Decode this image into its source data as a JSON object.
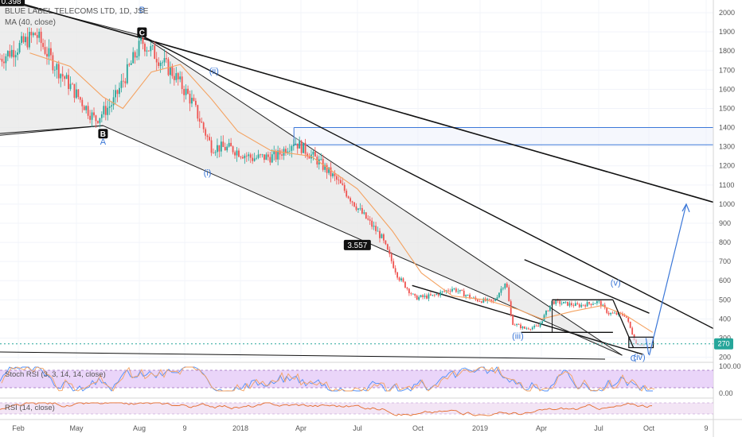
{
  "header": {
    "title": "BLUE LABEL TELECOMS LTD, 1D, JSE",
    "ma_label": "MA (40, close)"
  },
  "indicators": {
    "stoch_label": "Stoch RSI (3, 3, 14, 14, close)",
    "rsi_label": "RSI (14, close)",
    "stoch_ticks": [
      "100.00",
      "0.00"
    ]
  },
  "colors": {
    "up": "#26a69a",
    "down": "#ef5350",
    "ma": "#f4a261",
    "box": "#3c78d8",
    "wave_label": "#3c78d8",
    "stoch_fill": "#e3c7f7",
    "rsi_fill": "#f3e5f5",
    "current_price_bg": "#26a69a",
    "stoch_k": "#4f8ef7",
    "stoch_d": "#f4a261",
    "rsi_line": "#e46b2a"
  },
  "chart_data": {
    "type": "candlestick",
    "y_axis": {
      "ticks": [
        2000,
        1900,
        1800,
        1700,
        1600,
        1500,
        1400,
        1300,
        1200,
        1100,
        1000,
        900,
        800,
        700,
        600,
        500,
        400,
        300,
        200
      ],
      "range": [
        190,
        2050
      ],
      "scale": "linear"
    },
    "x_axis": {
      "ticks": [
        "Feb",
        "May",
        "Aug",
        "9",
        "2018",
        "Apr",
        "Jul",
        "Oct",
        "2019",
        "Apr",
        "Jul",
        "Oct",
        "9"
      ],
      "range": [
        "2017-01-15",
        "2019-12-31"
      ]
    },
    "current_price": 270,
    "price_path": [
      [
        "2017-01-15",
        1760
      ],
      [
        "2017-02-15",
        1830
      ],
      [
        "2017-03-10",
        1890
      ],
      [
        "2017-04-05",
        1740
      ],
      [
        "2017-05-05",
        1600
      ],
      [
        "2017-06-08",
        1440
      ],
      [
        "2017-07-05",
        1530
      ],
      [
        "2017-08-01",
        1730
      ],
      [
        "2017-08-18",
        1850
      ],
      [
        "2017-09-10",
        1770
      ],
      [
        "2017-10-05",
        1680
      ],
      [
        "2017-11-01",
        1540
      ],
      [
        "2017-12-01",
        1300
      ],
      [
        "2018-01-01",
        1290
      ],
      [
        "2018-02-01",
        1240
      ],
      [
        "2018-03-10",
        1250
      ],
      [
        "2018-04-05",
        1330
      ],
      [
        "2018-05-10",
        1230
      ],
      [
        "2018-06-10",
        1120
      ],
      [
        "2018-07-15",
        960
      ],
      [
        "2018-08-15",
        830
      ],
      [
        "2018-09-10",
        620
      ],
      [
        "2018-10-05",
        510
      ],
      [
        "2018-11-01",
        520
      ],
      [
        "2018-12-01",
        560
      ],
      [
        "2019-01-05",
        500
      ],
      [
        "2019-02-01",
        490
      ],
      [
        "2019-02-20",
        600
      ],
      [
        "2019-03-01",
        380
      ],
      [
        "2019-03-20",
        350
      ],
      [
        "2019-04-10",
        360
      ],
      [
        "2019-05-01",
        490
      ],
      [
        "2019-06-10",
        470
      ],
      [
        "2019-07-10",
        490
      ],
      [
        "2019-07-25",
        430
      ],
      [
        "2019-08-20",
        420
      ],
      [
        "2019-09-05",
        270
      ],
      [
        "2019-09-20",
        270
      ]
    ],
    "moving_average": {
      "name": "MA (40, close)",
      "points": [
        [
          "2017-03-01",
          1790
        ],
        [
          "2017-05-01",
          1720
        ],
        [
          "2017-06-20",
          1560
        ],
        [
          "2017-07-20",
          1500
        ],
        [
          "2017-09-01",
          1690
        ],
        [
          "2017-10-15",
          1730
        ],
        [
          "2017-12-01",
          1550
        ],
        [
          "2018-01-10",
          1380
        ],
        [
          "2018-03-01",
          1280
        ],
        [
          "2018-05-01",
          1250
        ],
        [
          "2018-07-10",
          1080
        ],
        [
          "2018-09-01",
          860
        ],
        [
          "2018-10-15",
          640
        ],
        [
          "2018-12-01",
          520
        ],
        [
          "2019-01-20",
          500
        ],
        [
          "2019-03-10",
          450
        ],
        [
          "2019-04-15",
          400
        ],
        [
          "2019-06-01",
          440
        ],
        [
          "2019-07-15",
          470
        ],
        [
          "2019-08-20",
          420
        ],
        [
          "2019-09-30",
          330
        ]
      ]
    },
    "levels": [
      {
        "price": 1400,
        "from": "2018-04-05",
        "to": "2019-12-31"
      },
      {
        "price": 1310,
        "from": "2018-04-05",
        "to": "2019-12-31"
      }
    ],
    "trendlines": [
      {
        "from": [
          "2017-01-15",
          2080
        ],
        "to": [
          "2019-12-31",
          1010
        ]
      },
      {
        "from": [
          "2017-08-18",
          1880
        ],
        "to": [
          "2019-12-31",
          350
        ]
      },
      {
        "from": [
          "2019-03-20",
          710
        ],
        "to": [
          "2019-09-25",
          430
        ]
      }
    ],
    "channel": {
      "upper": [
        [
          "2017-01-15",
          2070
        ],
        [
          "2017-08-18",
          1880
        ],
        [
          "2019-08-15",
          210
        ]
      ],
      "lower": [
        [
          "2017-01-15",
          1360
        ],
        [
          "2017-06-20",
          1410
        ],
        [
          "2019-08-15",
          210
        ]
      ]
    },
    "wave_labels": [
      {
        "text": "B",
        "date": "2017-08-18",
        "price": 2000
      },
      {
        "text": "C",
        "date": "2017-08-18",
        "price": 1890
      },
      {
        "text": "B",
        "date": "2017-06-20",
        "price": 1360
      },
      {
        "text": "A",
        "date": "2017-06-20",
        "price": 1310
      },
      {
        "text": "(ii)",
        "date": "2017-12-05",
        "price": 1680
      },
      {
        "text": "(i)",
        "date": "2017-11-25",
        "price": 1150
      },
      {
        "text": "(iii)",
        "date": "2019-03-10",
        "price": 295
      },
      {
        "text": "(v)",
        "date": "2019-08-05",
        "price": 575
      },
      {
        "text": "(iv)",
        "date": "2019-09-10",
        "price": 185
      },
      {
        "text": "C",
        "date": "2019-09-01",
        "price": 180
      }
    ],
    "annotations": [
      {
        "text": "0.398",
        "date": "2017-02-01",
        "price": 2055
      },
      {
        "text": "3.557",
        "date": "2018-07-10",
        "price": 780
      }
    ],
    "projection_arrow": {
      "from": [
        "2019-09-25",
        210
      ],
      "to": [
        "2019-11-20",
        1000
      ]
    },
    "correction_box": {
      "from": "2019-05-01",
      "to": "2019-08-01",
      "top": 500,
      "bottom": 330
    },
    "small_box": {
      "from": "2019-08-25",
      "to": "2019-10-01",
      "top": 305,
      "bottom": 250
    }
  }
}
